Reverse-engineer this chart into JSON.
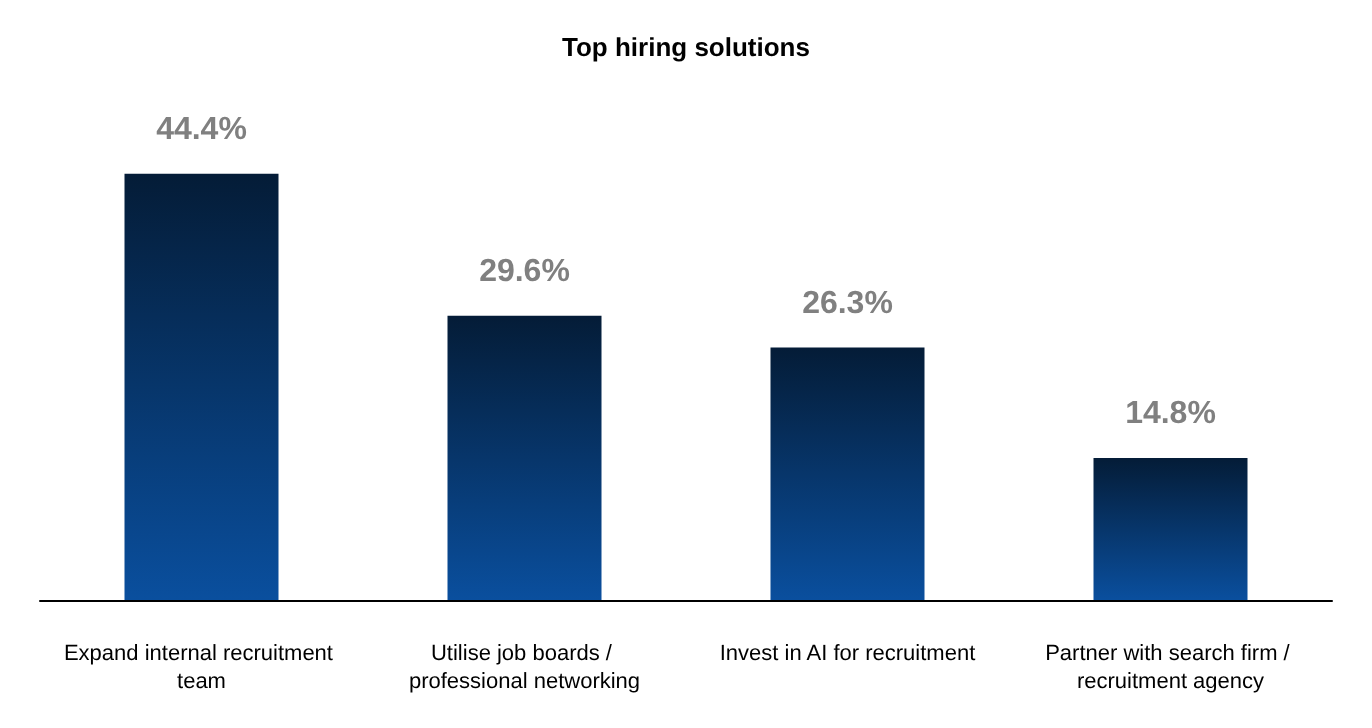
{
  "chart_data": {
    "type": "bar",
    "title": "Top hiring solutions",
    "categories": [
      "Expand internal recruitment team",
      "Utilise job boards / professional networking",
      "Invest in AI for recruitment",
      "Partner with search firm / recruitment agency"
    ],
    "values": [
      44.4,
      29.6,
      26.3,
      14.8
    ],
    "value_labels": [
      "44.4%",
      "29.6%",
      "26.3%",
      "14.8%"
    ],
    "color": "#0a4f9e"
  }
}
